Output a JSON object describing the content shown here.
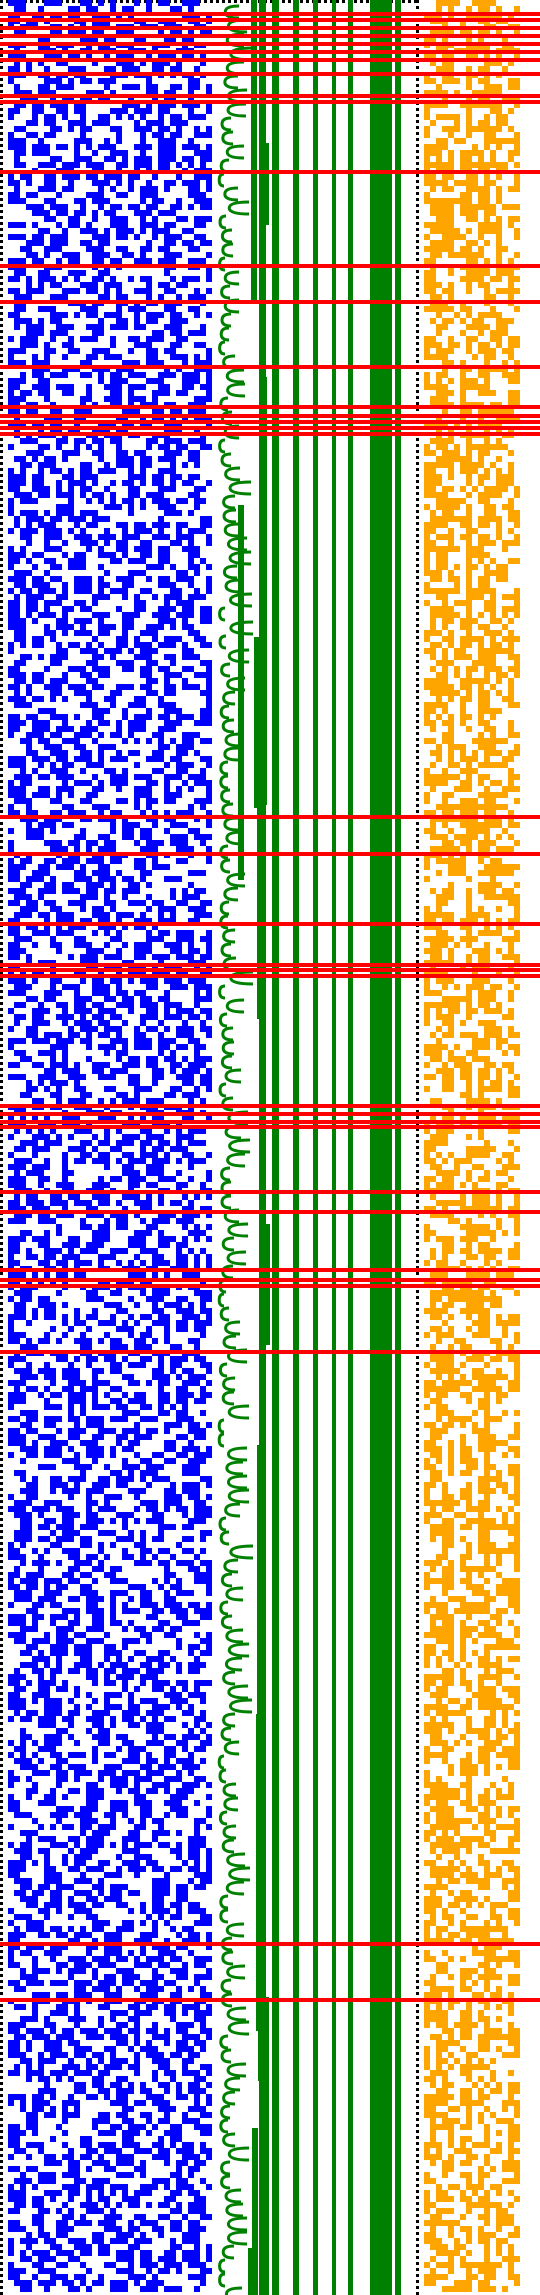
{
  "colors": {
    "background": "#ffffff",
    "dotted_border": "#000000",
    "pixel_grid": "#0000ff",
    "tree_lines": "#008000",
    "highlight_rows": "#ff0000",
    "right_grid": "#ffa500"
  },
  "panels": [
    {
      "name": "blue-bit-matrix",
      "fill_density": 0.5
    },
    {
      "name": "green-nested-bracket-diagram"
    },
    {
      "name": "orange-bit-matrix",
      "fill_density": 0.45
    }
  ]
}
